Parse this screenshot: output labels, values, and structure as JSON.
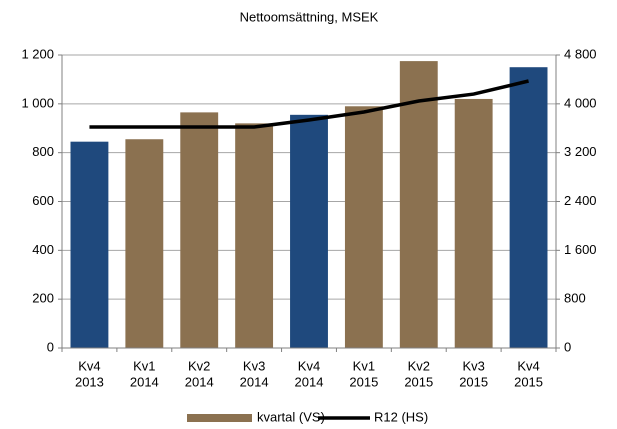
{
  "chart_data": {
    "type": "bar",
    "title": "Nettoomsättning, MSEK",
    "categories": [
      [
        "Kv4",
        "2013"
      ],
      [
        "Kv1",
        "2014"
      ],
      [
        "Kv2",
        "2014"
      ],
      [
        "Kv3",
        "2014"
      ],
      [
        "Kv4",
        "2014"
      ],
      [
        "Kv1",
        "2015"
      ],
      [
        "Kv2",
        "2015"
      ],
      [
        "Kv3",
        "2015"
      ],
      [
        "Kv4",
        "2015"
      ]
    ],
    "series": [
      {
        "name": "kvartal (VS)",
        "color": "#8b7150",
        "colors": [
          "#1f497d",
          "#8b7150",
          "#8b7150",
          "#8b7150",
          "#1f497d",
          "#8b7150",
          "#8b7150",
          "#8b7150",
          "#1f497d"
        ],
        "values": [
          845,
          855,
          965,
          920,
          955,
          990,
          1175,
          1020,
          1150
        ]
      },
      {
        "name": "R12 (HS)",
        "color": "#000000",
        "axis": "y2",
        "values": [
          3620,
          3620,
          3620,
          3620,
          3735,
          3866,
          4046,
          4160,
          4374
        ]
      }
    ],
    "ylim": [
      0,
      1200
    ],
    "yticks": [
      0,
      200,
      400,
      600,
      800,
      {
        "value": 1000,
        "label": "1 000"
      },
      {
        "value": 1200,
        "label": "1 200"
      }
    ],
    "y2lim": [
      0,
      4800
    ],
    "y2ticks": [
      0,
      800,
      {
        "value": 1600,
        "label": "1 600"
      },
      {
        "value": 2400,
        "label": "2 400"
      },
      {
        "value": 3200,
        "label": "3 200"
      },
      {
        "value": 4000,
        "label": "4 000"
      },
      {
        "value": 4800,
        "label": "4 800"
      }
    ],
    "grid": true
  }
}
